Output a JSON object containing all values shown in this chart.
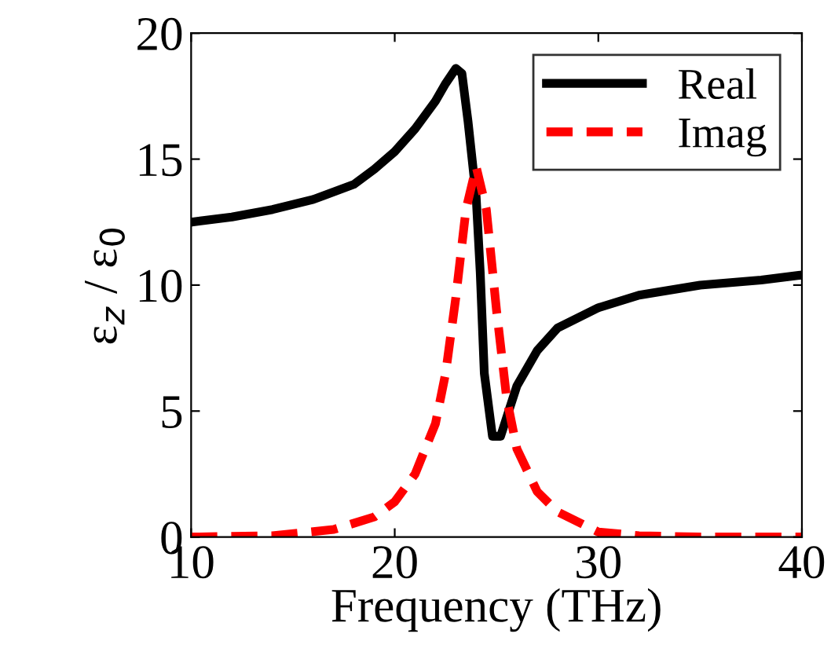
{
  "chart_data": {
    "type": "line",
    "xlabel": "Frequency (THz)",
    "ylabel": "ε$_{z}$ / ε$_{0}$",
    "xlim": [
      10,
      40
    ],
    "xticks": [
      10,
      20,
      30,
      40
    ],
    "ylim": [
      0,
      20
    ],
    "yticks": [
      0,
      5,
      10,
      15,
      20
    ],
    "grid": false,
    "legend": "top right",
    "marker": "none",
    "series": [
      {
        "name": "Real",
        "color": "#000000",
        "line_style": "solid",
        "x": [
          10,
          12,
          14,
          16,
          18,
          19,
          20,
          21,
          22,
          22.5,
          23,
          23.3,
          23.6,
          24,
          24.2,
          24.4,
          24.8,
          25.2,
          25.6,
          26,
          27,
          28,
          30,
          32,
          35,
          38,
          40
        ],
        "values": [
          12.5,
          12.7,
          13.0,
          13.4,
          14.0,
          14.6,
          15.3,
          16.2,
          17.3,
          18.0,
          18.6,
          18.4,
          16.5,
          13.5,
          10.5,
          6.5,
          4.0,
          4.0,
          5.0,
          6.0,
          7.4,
          8.3,
          9.1,
          9.6,
          10.0,
          10.2,
          10.4
        ]
      },
      {
        "name": "Imag",
        "color": "#ff0000",
        "line_style": "dashed",
        "x": [
          10,
          14,
          17,
          19,
          20,
          21,
          22,
          22.5,
          23,
          23.5,
          24,
          24.5,
          25,
          25.5,
          26,
          27,
          28,
          30,
          32,
          35,
          40
        ],
        "values": [
          0,
          0.05,
          0.3,
          0.8,
          1.4,
          2.5,
          4.5,
          6.5,
          9.5,
          13.0,
          14.7,
          13.0,
          9.0,
          5.5,
          3.5,
          1.8,
          1.0,
          0.2,
          0.05,
          0,
          0
        ]
      }
    ]
  }
}
